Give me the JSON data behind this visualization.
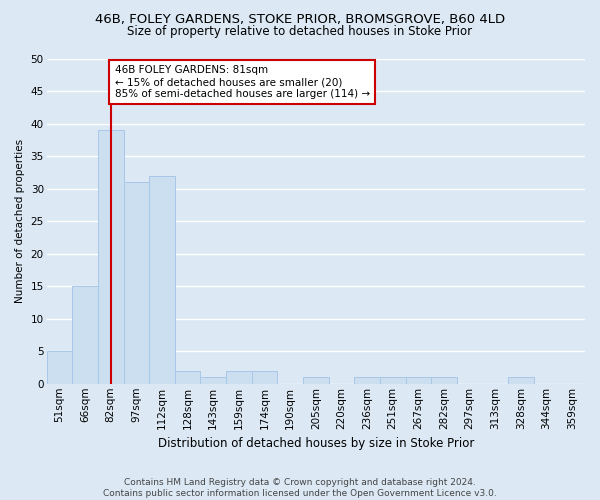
{
  "title": "46B, FOLEY GARDENS, STOKE PRIOR, BROMSGROVE, B60 4LD",
  "subtitle": "Size of property relative to detached houses in Stoke Prior",
  "xlabel": "Distribution of detached houses by size in Stoke Prior",
  "ylabel": "Number of detached properties",
  "bar_color": "#ccdff0",
  "bar_edge_color": "#a8c8e8",
  "fig_bg_color": "#dce9f5",
  "ax_bg_color": "#dce9f5",
  "grid_color": "#ffffff",
  "categories": [
    "51sqm",
    "66sqm",
    "82sqm",
    "97sqm",
    "112sqm",
    "128sqm",
    "143sqm",
    "159sqm",
    "174sqm",
    "190sqm",
    "205sqm",
    "220sqm",
    "236sqm",
    "251sqm",
    "267sqm",
    "282sqm",
    "297sqm",
    "313sqm",
    "328sqm",
    "344sqm",
    "359sqm"
  ],
  "values": [
    5,
    15,
    39,
    31,
    32,
    2,
    1,
    2,
    2,
    0,
    1,
    0,
    1,
    1,
    1,
    1,
    0,
    0,
    1,
    0,
    0
  ],
  "property_line_x": 2.0,
  "annotation_line1": "46B FOLEY GARDENS: 81sqm",
  "annotation_line2": "← 15% of detached houses are smaller (20)",
  "annotation_line3": "85% of semi-detached houses are larger (114) →",
  "annotation_box_facecolor": "#ffffff",
  "annotation_box_edgecolor": "#cc0000",
  "vline_color": "#cc0000",
  "ylim": [
    0,
    50
  ],
  "yticks": [
    0,
    5,
    10,
    15,
    20,
    25,
    30,
    35,
    40,
    45,
    50
  ],
  "title_fontsize": 9.5,
  "subtitle_fontsize": 8.5,
  "xlabel_fontsize": 8.5,
  "ylabel_fontsize": 7.5,
  "tick_fontsize": 7.5,
  "annotation_fontsize": 7.5,
  "footer1": "Contains HM Land Registry data © Crown copyright and database right 2024.",
  "footer2": "Contains public sector information licensed under the Open Government Licence v3.0.",
  "footer_fontsize": 6.5
}
